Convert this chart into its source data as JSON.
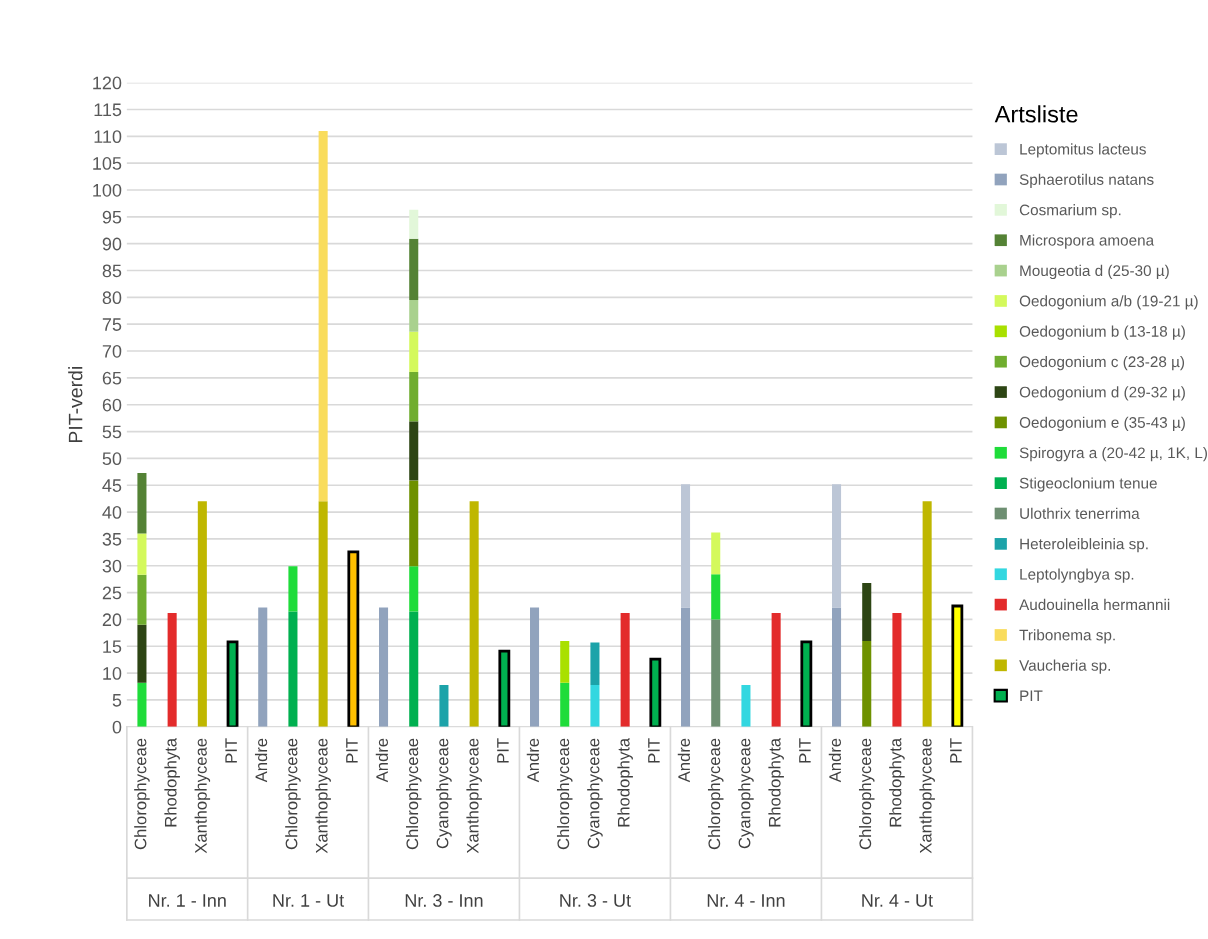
{
  "chart_data": {
    "type": "bar",
    "stacked": true,
    "ylabel": "PIT-verdi",
    "legend_title": "Artsliste",
    "legend": "right",
    "grid": "y",
    "categories": [
      "Chlorophyceae",
      "Rhodophyta",
      "Xanthophyceae",
      "PIT",
      "Andre",
      "Chlorophyceae",
      "Xanthophyceae",
      "PIT",
      "Andre",
      "Chlorophyceae",
      "Cyanophyceae",
      "Xanthophyceae",
      "PIT",
      "Andre",
      "Chlorophyceae",
      "Cyanophyceae",
      "Rhodophyta",
      "PIT",
      "Andre",
      "Chlorophyceae",
      "Cyanophyceae",
      "Rhodophyta",
      "PIT",
      "Andre",
      "Chlorophyceae",
      "Rhodophyta",
      "Xanthophyceae",
      "PIT"
    ],
    "annotations": [
      "Nr. 1 - Inn",
      "Nr. 1 - Ut",
      "Nr. 3 - Inn",
      "Nr. 3 - Ut",
      "Nr. 4 - Inn",
      "Nr. 4 - Ut"
    ],
    "ylim": [
      0,
      120
    ],
    "yticks": [
      0,
      5,
      10,
      15,
      20,
      25,
      30,
      35,
      40,
      45,
      50,
      55,
      60,
      65,
      70,
      75,
      80,
      85,
      90,
      95,
      100,
      105,
      110,
      115,
      120
    ],
    "series": [
      {
        "name": "PIT",
        "color": "#00b050",
        "colors": [
          null,
          null,
          null,
          "#00b050",
          null,
          null,
          null,
          "#ffc000",
          null,
          null,
          null,
          null,
          "#00b050",
          null,
          null,
          null,
          null,
          "#00b050",
          null,
          null,
          null,
          null,
          "#00b050",
          null,
          null,
          null,
          null,
          "#ffff00"
        ],
        "values": [
          null,
          null,
          null,
          15.8,
          null,
          null,
          null,
          32.6,
          null,
          null,
          null,
          null,
          14.1,
          null,
          null,
          null,
          null,
          12.6,
          null,
          null,
          null,
          null,
          15.8,
          null,
          null,
          null,
          null,
          22.5
        ]
      },
      {
        "name": "Vaucheria sp.",
        "color": "#bfb700",
        "values": [
          null,
          null,
          42,
          null,
          null,
          null,
          42,
          null,
          null,
          null,
          null,
          42,
          null,
          null,
          null,
          null,
          null,
          null,
          null,
          null,
          null,
          null,
          null,
          null,
          null,
          null,
          42,
          null
        ]
      },
      {
        "name": "Tribonema sp.",
        "color": "#f9dc5c",
        "values": [
          null,
          null,
          null,
          null,
          null,
          null,
          69,
          null,
          null,
          null,
          null,
          null,
          null,
          null,
          null,
          null,
          null,
          null,
          null,
          null,
          null,
          null,
          null,
          null,
          null,
          null,
          null,
          null
        ]
      },
      {
        "name": "Audouinella hermannii",
        "color": "#e32b2b",
        "values": [
          null,
          21.2,
          null,
          null,
          null,
          null,
          null,
          null,
          null,
          null,
          null,
          null,
          null,
          null,
          null,
          null,
          21.2,
          null,
          null,
          null,
          null,
          21.2,
          null,
          null,
          null,
          21.2,
          null,
          null
        ]
      },
      {
        "name": "Leptolyngbya sp.",
        "color": "#33d7e0",
        "values": [
          null,
          null,
          null,
          null,
          null,
          null,
          null,
          null,
          null,
          null,
          null,
          null,
          null,
          null,
          null,
          7.8,
          null,
          null,
          null,
          null,
          7.8,
          null,
          null,
          null,
          null,
          null,
          null,
          null
        ]
      },
      {
        "name": "Heteroleibleinia sp.",
        "color": "#1ca3a9",
        "values": [
          null,
          null,
          null,
          null,
          null,
          null,
          null,
          null,
          null,
          null,
          7.8,
          null,
          null,
          null,
          null,
          7.9,
          null,
          null,
          null,
          null,
          null,
          null,
          null,
          null,
          null,
          null,
          null,
          null
        ]
      },
      {
        "name": "Ulothrix tenerrima",
        "color": "#6e8f72",
        "values": [
          null,
          null,
          null,
          null,
          null,
          null,
          null,
          null,
          null,
          null,
          null,
          null,
          null,
          null,
          null,
          null,
          null,
          null,
          null,
          20,
          null,
          null,
          null,
          null,
          null,
          null,
          null,
          null
        ]
      },
      {
        "name": "Stigeoclonium tenue",
        "color": "#00b050",
        "values": [
          null,
          null,
          null,
          null,
          null,
          21.5,
          null,
          null,
          null,
          21.5,
          null,
          null,
          null,
          null,
          null,
          null,
          null,
          null,
          null,
          null,
          null,
          null,
          null,
          null,
          null,
          null,
          null,
          null
        ]
      },
      {
        "name": "Spirogyra a (20-42 µ, 1K, L)",
        "color": "#1fdc3a",
        "values": [
          8.2,
          null,
          null,
          null,
          null,
          8.4,
          null,
          null,
          null,
          8.4,
          null,
          null,
          null,
          null,
          8.2,
          null,
          null,
          null,
          null,
          8.4,
          null,
          null,
          null,
          null,
          null,
          null,
          null,
          null
        ]
      },
      {
        "name": "Oedogonium e (35-43 µ)",
        "color": "#6e9100",
        "values": [
          null,
          null,
          null,
          null,
          null,
          null,
          null,
          null,
          null,
          16,
          null,
          null,
          null,
          null,
          null,
          null,
          null,
          null,
          null,
          null,
          null,
          null,
          null,
          null,
          16,
          null,
          null,
          null
        ]
      },
      {
        "name": "Oedogonium d (29-32 µ)",
        "color": "#2d4514",
        "values": [
          10.8,
          null,
          null,
          null,
          null,
          null,
          null,
          null,
          null,
          11,
          null,
          null,
          null,
          null,
          null,
          null,
          null,
          null,
          null,
          null,
          null,
          null,
          null,
          null,
          10.8,
          null,
          null,
          null
        ]
      },
      {
        "name": "Oedogonium c (23-28 µ)",
        "color": "#70ad2f",
        "values": [
          9.3,
          null,
          null,
          null,
          null,
          null,
          null,
          null,
          null,
          9.2,
          null,
          null,
          null,
          null,
          null,
          null,
          null,
          null,
          null,
          null,
          null,
          null,
          null,
          null,
          null,
          null,
          null,
          null
        ]
      },
      {
        "name": "Oedogonium b (13-18 µ)",
        "color": "#a9e000",
        "values": [
          null,
          null,
          null,
          null,
          null,
          null,
          null,
          null,
          null,
          null,
          null,
          null,
          null,
          null,
          7.8,
          null,
          null,
          null,
          null,
          null,
          null,
          null,
          null,
          null,
          null,
          null,
          null,
          null
        ]
      },
      {
        "name": "Oedogonium a/b (19-21 µ)",
        "color": "#d4f95c",
        "values": [
          7.7,
          null,
          null,
          null,
          null,
          null,
          null,
          null,
          null,
          7.5,
          null,
          null,
          null,
          null,
          null,
          null,
          null,
          null,
          null,
          7.8,
          null,
          null,
          null,
          null,
          null,
          null,
          null,
          null
        ]
      },
      {
        "name": "Mougeotia d (25-30 µ)",
        "color": "#a9d18e",
        "values": [
          null,
          null,
          null,
          null,
          null,
          null,
          null,
          null,
          null,
          5.9,
          null,
          null,
          null,
          null,
          null,
          null,
          null,
          null,
          null,
          null,
          null,
          null,
          null,
          null,
          null,
          null,
          null,
          null
        ]
      },
      {
        "name": "Microspora amoena",
        "color": "#548235",
        "values": [
          11.3,
          null,
          null,
          null,
          null,
          null,
          null,
          null,
          null,
          11.4,
          null,
          null,
          null,
          null,
          null,
          null,
          null,
          null,
          null,
          null,
          null,
          null,
          null,
          null,
          null,
          null,
          null,
          null
        ]
      },
      {
        "name": "Cosmarium sp.",
        "color": "#e2f7d9",
        "values": [
          null,
          null,
          null,
          null,
          null,
          null,
          null,
          null,
          null,
          5.4,
          null,
          null,
          null,
          null,
          null,
          null,
          null,
          null,
          null,
          null,
          null,
          null,
          null,
          null,
          null,
          null,
          null,
          null
        ]
      },
      {
        "name": "Sphaerotilus natans",
        "color": "#91a3bd",
        "values": [
          null,
          null,
          null,
          null,
          22.2,
          null,
          null,
          null,
          22.2,
          null,
          null,
          null,
          null,
          22.2,
          null,
          null,
          null,
          null,
          22.2,
          null,
          null,
          null,
          null,
          22.2,
          null,
          null,
          null,
          null
        ]
      },
      {
        "name": "Leptomitus lacteus",
        "color": "#bcc6d6",
        "values": [
          null,
          null,
          null,
          null,
          null,
          null,
          null,
          null,
          null,
          null,
          null,
          null,
          null,
          null,
          null,
          null,
          null,
          null,
          23,
          null,
          null,
          null,
          null,
          23,
          null,
          null,
          null,
          null
        ]
      }
    ]
  }
}
